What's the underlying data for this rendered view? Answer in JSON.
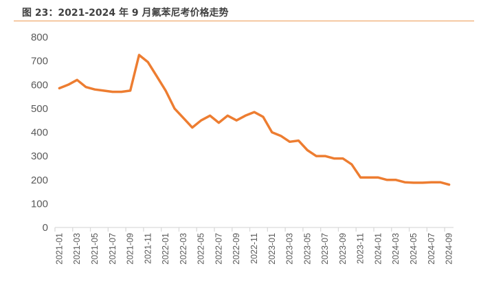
{
  "title": "图 23：2021-2024 年 9 月氟苯尼考价格走势",
  "colors": {
    "line": "#ED7D31",
    "axis": "#D9D9D9",
    "rule": "#ED9B53"
  },
  "chart_data": {
    "type": "line",
    "title": "图 23：2021-2024 年 9 月氟苯尼考价格走势",
    "xlabel": "",
    "ylabel": "",
    "ylim": [
      0,
      800
    ],
    "yticks": [
      "0",
      "100",
      "200",
      "300",
      "400",
      "500",
      "600",
      "700",
      "800"
    ],
    "grid": false,
    "x": [
      "2021-01",
      "2021-02",
      "2021-03",
      "2021-04",
      "2021-05",
      "2021-06",
      "2021-07",
      "2021-08",
      "2021-09",
      "2021-10",
      "2021-11",
      "2021-12",
      "2022-01",
      "2022-02",
      "2022-03",
      "2022-04",
      "2022-05",
      "2022-06",
      "2022-07",
      "2022-08",
      "2022-09",
      "2022-10",
      "2022-11",
      "2022-12",
      "2023-01",
      "2023-02",
      "2023-03",
      "2023-04",
      "2023-05",
      "2023-06",
      "2023-07",
      "2023-08",
      "2023-09",
      "2023-10",
      "2023-11",
      "2023-12",
      "2024-01",
      "2024-02",
      "2024-03",
      "2024-04",
      "2024-05",
      "2024-06",
      "2024-07",
      "2024-08",
      "2024-09"
    ],
    "series": [
      {
        "name": "氟苯尼考价格",
        "values": [
          585,
          600,
          620,
          590,
          580,
          575,
          570,
          570,
          575,
          725,
          695,
          635,
          575,
          500,
          460,
          420,
          450,
          470,
          440,
          470,
          450,
          470,
          485,
          465,
          400,
          385,
          360,
          365,
          325,
          300,
          300,
          290,
          290,
          265,
          210,
          210,
          210,
          200,
          200,
          190,
          188,
          188,
          190,
          190,
          180
        ]
      }
    ]
  }
}
